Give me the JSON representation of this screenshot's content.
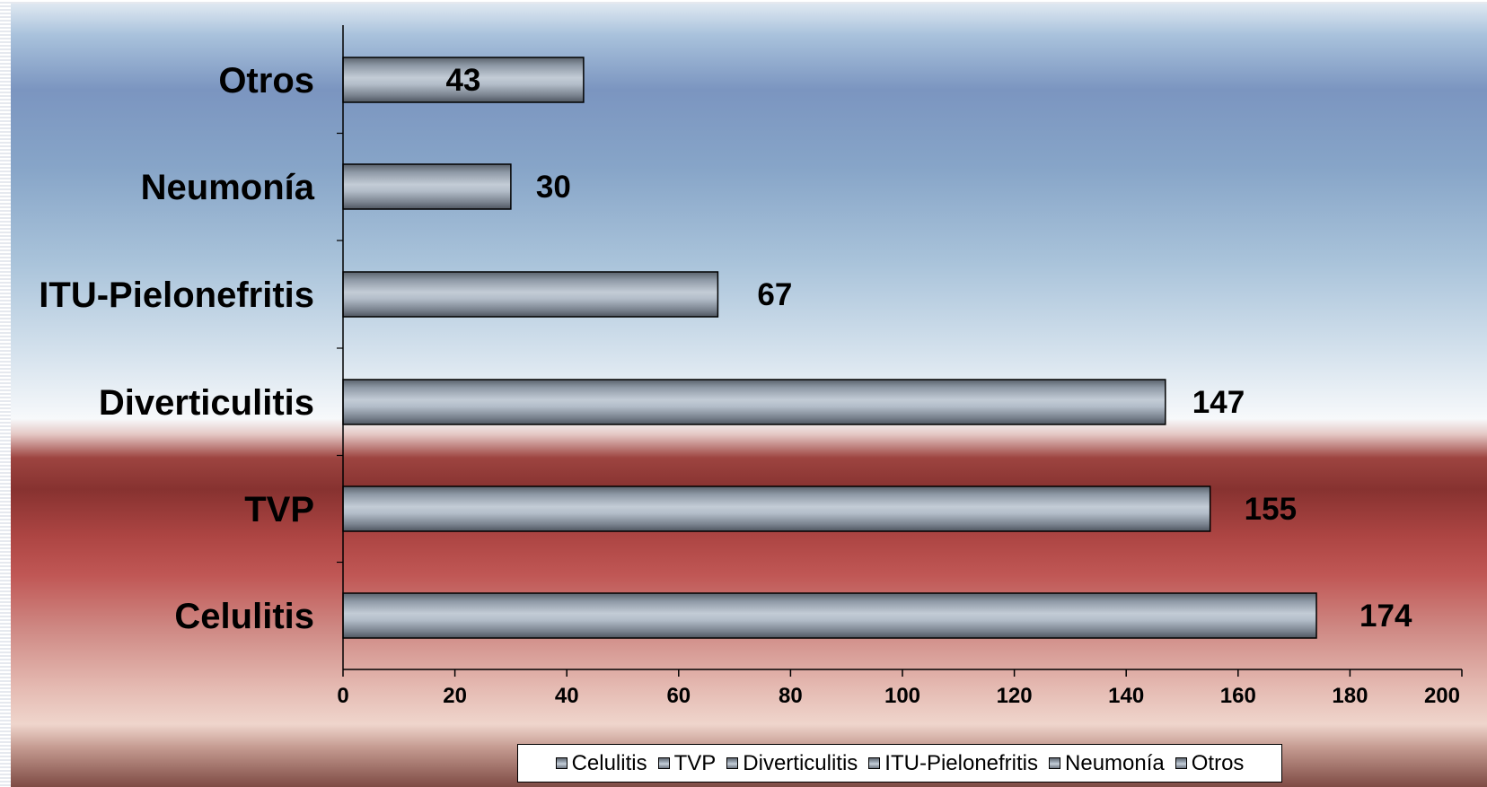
{
  "chart_data": {
    "type": "bar",
    "orientation": "horizontal",
    "categories": [
      "Celulitis",
      "TVP",
      "Diverticulitis",
      "ITU-Pielonefritis",
      "Neumonía",
      "Otros"
    ],
    "values": [
      174,
      155,
      147,
      67,
      30,
      43
    ],
    "data_labels": [
      "174",
      "155",
      "147",
      "67",
      "30",
      "43"
    ],
    "xlim": [
      0,
      200
    ],
    "x_ticks": [
      0,
      20,
      40,
      60,
      80,
      100,
      120,
      140,
      160,
      180,
      200
    ],
    "title": "",
    "xlabel": "",
    "ylabel": "",
    "grid": false,
    "legend_position": "bottom",
    "legend": [
      "Celulitis",
      "TVP",
      "Diverticulitis",
      "ITU-Pielonefritis",
      "Neumonía",
      "Otros"
    ],
    "bar_color": "#a4afbc"
  }
}
